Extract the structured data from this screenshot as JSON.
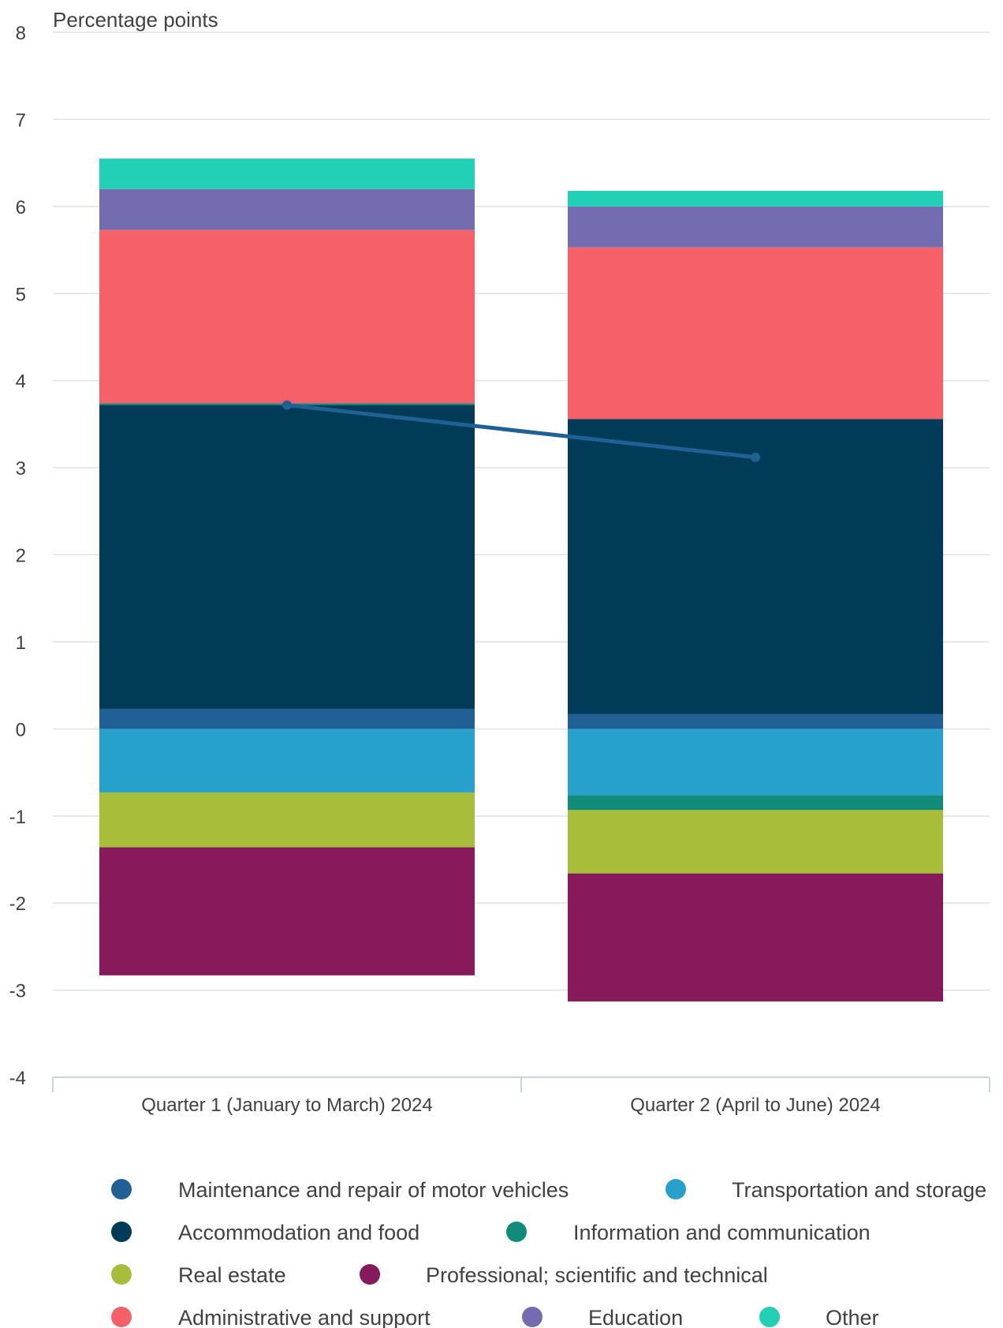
{
  "chart_data": {
    "type": "bar",
    "stacked": true,
    "ylabel": "Percentage points",
    "ylim": [
      -4,
      8
    ],
    "yticks": [
      8,
      7,
      6,
      5,
      4,
      3,
      2,
      1,
      0,
      -1,
      -2,
      -3,
      -4
    ],
    "ytick_labels": [
      "8",
      "7",
      "6",
      "5",
      "4",
      "3",
      "2",
      "1",
      "0",
      "-1",
      "-2",
      "-3",
      "-4"
    ],
    "grid": true,
    "legend_position": "bottom",
    "categories": [
      "Quarter 1 (January to March) 2024",
      "Quarter 2 (April to June) 2024"
    ],
    "series": [
      {
        "name": "Maintenance and repair of motor vehicles",
        "color": "#206095",
        "values": [
          0.23,
          0.17
        ]
      },
      {
        "name": "Transportation and storage",
        "color": "#27a0cc",
        "values": [
          -0.73,
          -0.76
        ]
      },
      {
        "name": "Accommodation and food",
        "color": "#003c57",
        "values": [
          3.49,
          3.39
        ]
      },
      {
        "name": "Information and communication",
        "color": "#118c7b",
        "values": [
          0.02,
          -0.17
        ]
      },
      {
        "name": "Real estate",
        "color": "#a8bd3a",
        "values": [
          -0.63,
          -0.73
        ]
      },
      {
        "name": "Professional; scientific and technical",
        "color": "#871a5b",
        "values": [
          -1.47,
          -1.47
        ]
      },
      {
        "name": "Administrative and support",
        "color": "#f66068",
        "values": [
          1.99,
          1.97
        ]
      },
      {
        "name": "Education",
        "color": "#746cb1",
        "values": [
          0.47,
          0.47
        ]
      },
      {
        "name": "Other",
        "color": "#22d0b6",
        "values": [
          0.35,
          0.18
        ]
      }
    ],
    "line": {
      "color": "#206095",
      "values": [
        3.72,
        3.12
      ]
    }
  }
}
